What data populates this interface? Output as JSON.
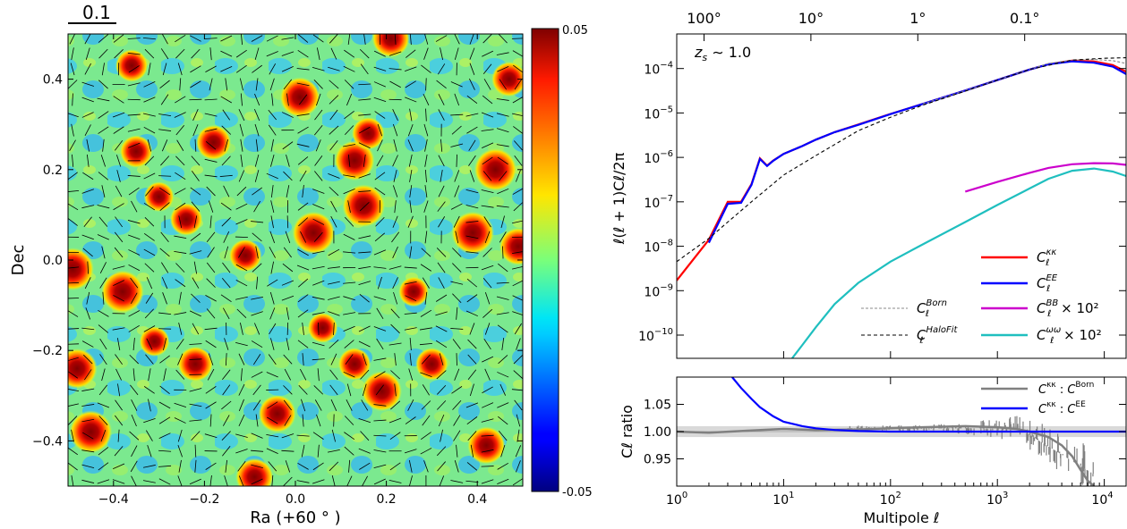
{
  "chart_data": [
    {
      "type": "heatmap",
      "description_scale_label": "0.1",
      "xlabel": "Ra (+60$^\\circ$)",
      "xlabel_display": "Ra (+60 ° )",
      "ylabel": "Dec",
      "xlim": [
        -0.5,
        0.5
      ],
      "ylim": [
        -0.5,
        0.5
      ],
      "xticks": [
        -0.4,
        -0.2,
        0.0,
        0.2,
        0.4
      ],
      "xtick_labels": [
        "−0.4",
        "−0.2",
        "0.0",
        "0.2",
        "0.4"
      ],
      "yticks": [
        -0.4,
        -0.2,
        0.0,
        0.2,
        0.4
      ],
      "ytick_labels": [
        "−0.4",
        "−0.2",
        "0.0",
        "0.2",
        "0.4"
      ],
      "colorbar": {
        "min": -0.05,
        "max": 0.05,
        "min_label": "-0.05",
        "max_label": "0.05",
        "colormap": "jet"
      },
      "peaks": [
        {
          "x": 0.04,
          "y": 0.06,
          "value": 0.05
        },
        {
          "x": 0.15,
          "y": 0.12,
          "value": 0.05
        },
        {
          "x": -0.49,
          "y": -0.02,
          "value": 0.05
        },
        {
          "x": -0.38,
          "y": -0.07,
          "value": 0.05
        },
        {
          "x": -0.45,
          "y": -0.38,
          "value": 0.05
        },
        {
          "x": 0.44,
          "y": 0.2,
          "value": 0.05
        },
        {
          "x": 0.39,
          "y": 0.06,
          "value": 0.05
        },
        {
          "x": 0.13,
          "y": 0.22,
          "value": 0.045
        },
        {
          "x": 0.01,
          "y": 0.36,
          "value": 0.045
        },
        {
          "x": -0.48,
          "y": -0.24,
          "value": 0.045
        },
        {
          "x": 0.19,
          "y": -0.29,
          "value": 0.045
        },
        {
          "x": -0.04,
          "y": -0.34,
          "value": 0.04
        },
        {
          "x": -0.09,
          "y": -0.48,
          "value": 0.04
        },
        {
          "x": 0.49,
          "y": 0.03,
          "value": 0.04
        },
        {
          "x": 0.42,
          "y": -0.41,
          "value": 0.04
        },
        {
          "x": 0.21,
          "y": 0.49,
          "value": 0.04
        },
        {
          "x": -0.18,
          "y": 0.26,
          "value": 0.035
        },
        {
          "x": -0.22,
          "y": -0.23,
          "value": 0.035
        },
        {
          "x": 0.47,
          "y": 0.4,
          "value": 0.035
        },
        {
          "x": -0.11,
          "y": 0.01,
          "value": 0.03
        },
        {
          "x": 0.16,
          "y": 0.28,
          "value": 0.03
        },
        {
          "x": 0.3,
          "y": -0.23,
          "value": 0.03
        },
        {
          "x": 0.13,
          "y": -0.23,
          "value": 0.03
        },
        {
          "x": -0.35,
          "y": 0.24,
          "value": 0.03
        },
        {
          "x": -0.24,
          "y": 0.09,
          "value": 0.03
        },
        {
          "x": -0.36,
          "y": 0.43,
          "value": 0.03
        },
        {
          "x": -0.3,
          "y": 0.14,
          "value": 0.025
        },
        {
          "x": 0.06,
          "y": -0.15,
          "value": 0.025
        },
        {
          "x": 0.26,
          "y": -0.07,
          "value": 0.025
        },
        {
          "x": -0.31,
          "y": -0.18,
          "value": 0.025
        }
      ]
    },
    {
      "type": "line",
      "title_top_axis": "",
      "top_tick_labels": [
        "100°",
        "10°",
        "1°",
        "0.1°"
      ],
      "top_tick_at_ell": [
        1.8,
        18,
        180,
        1800
      ],
      "annotation": "z_s ~ 1.0",
      "annotation_parts": {
        "z": "z",
        "sub": "s",
        "rest": " ∼ 1.0"
      },
      "ylabel": "ℓ(ℓ + 1)Cℓ/2π",
      "xscale": "log",
      "yscale": "log",
      "xlim": [
        1,
        16000
      ],
      "ylim": [
        3e-11,
        0.0006
      ],
      "yticks": [
        1e-10,
        1e-09,
        1e-08,
        1e-07,
        1e-06,
        1e-05,
        0.0001
      ],
      "ytick_labels": [
        {
          "base": "10",
          "exp": "−10"
        },
        {
          "base": "10",
          "exp": "−9"
        },
        {
          "base": "10",
          "exp": "−8"
        },
        {
          "base": "10",
          "exp": "−7"
        },
        {
          "base": "10",
          "exp": "−6"
        },
        {
          "base": "10",
          "exp": "−5"
        },
        {
          "base": "10",
          "exp": "−4"
        }
      ],
      "series": [
        {
          "name": "Cℓ^κκ",
          "label": {
            "main": "C",
            "sub": "ℓ",
            "sup": "κκ",
            "extra": ""
          },
          "color": "#ff0000",
          "x": [
            1,
            2,
            3,
            4,
            5,
            6,
            7,
            8,
            10,
            15,
            20,
            30,
            50,
            100,
            200,
            500,
            1000,
            2000,
            3000,
            5000,
            8000,
            12000,
            16000
          ],
          "y": [
            1.7e-09,
            1.4e-08,
            1e-07,
            1e-07,
            2.5e-07,
            9.5e-07,
            6.5e-07,
            8.5e-07,
            1.2e-06,
            1.8e-06,
            2.5e-06,
            3.7e-06,
            5.5e-06,
            9.5e-06,
            1.6e-05,
            3.2e-05,
            5.5e-05,
            9.5e-05,
            0.000125,
            0.00015,
            0.000145,
            0.00012,
            8.5e-05
          ]
        },
        {
          "name": "Cℓ^EE",
          "label": {
            "main": "C",
            "sub": "ℓ",
            "sup": "EE",
            "extra": ""
          },
          "color": "#0000ff",
          "x": [
            2,
            3,
            4,
            5,
            6,
            7,
            8,
            10,
            15,
            20,
            30,
            50,
            100,
            200,
            500,
            1000,
            2000,
            3000,
            5000,
            8000,
            12000,
            16000
          ],
          "y": [
            1.2e-08,
            9e-08,
            9.5e-08,
            2.4e-07,
            9.2e-07,
            6.4e-07,
            8.4e-07,
            1.2e-06,
            1.8e-06,
            2.5e-06,
            3.7e-06,
            5.4e-06,
            9.4e-06,
            1.6e-05,
            3.2e-05,
            5.5e-05,
            9.5e-05,
            0.000125,
            0.000145,
            0.000135,
            0.00011,
            7.5e-05
          ]
        },
        {
          "name": "Cℓ^BB × 10^2",
          "label": {
            "main": "C",
            "sub": "ℓ",
            "sup": "BB",
            "extra": " × 10²"
          },
          "color": "#cc00cc",
          "x": [
            500,
            1000,
            2000,
            3000,
            5000,
            8000,
            12000,
            16000
          ],
          "y": [
            1.7e-07,
            2.8e-07,
            4.5e-07,
            5.8e-07,
            7e-07,
            7.4e-07,
            7.3e-07,
            6.8e-07
          ]
        },
        {
          "name": "Cℓ^ωω × 10^2",
          "label": {
            "main": "C",
            "sub": "ℓ",
            "sup": "ωω",
            "extra": " × 10²"
          },
          "color": "#1fbfbf",
          "x": [
            12,
            15,
            20,
            30,
            50,
            100,
            200,
            500,
            1000,
            2000,
            3000,
            5000,
            8000,
            12000,
            16000
          ],
          "y": [
            3e-11,
            6e-11,
            1.5e-10,
            5e-10,
            1.5e-09,
            4.5e-09,
            1.1e-08,
            3.5e-08,
            8.5e-08,
            2e-07,
            3.3e-07,
            5e-07,
            5.6e-07,
            4.8e-07,
            3.8e-07
          ]
        },
        {
          "name": "Cℓ^Born",
          "label": {
            "main": "C",
            "sub": "ℓ",
            "sup": "Born",
            "extra": ""
          },
          "color": "#888888",
          "dash": "3,2",
          "x": [
            200,
            500,
            1000,
            2000,
            3000,
            5000,
            8000,
            12000,
            16000
          ],
          "y": [
            1.6e-05,
            3.2e-05,
            5.5e-05,
            9.5e-05,
            0.00013,
            0.000155,
            0.00016,
            0.00015,
            0.00013
          ]
        },
        {
          "name": "Cℓ^HaloFit",
          "label": {
            "main": "C",
            "sub": "ℓ",
            "sup": "HaloFit",
            "extra": ""
          },
          "color": "#000000",
          "dash": "4,3",
          "x": [
            1,
            2,
            3,
            5,
            10,
            20,
            50,
            100,
            200,
            500,
            1000,
            2000,
            5000,
            10000,
            16000
          ],
          "y": [
            4.5e-09,
            1.5e-08,
            3.5e-08,
            1e-07,
            4e-07,
            1.1e-06,
            4e-06,
            8e-06,
            1.5e-05,
            3.1e-05,
            5.5e-05,
            9.5e-05,
            0.000155,
            0.00017,
            0.000175
          ]
        }
      ]
    },
    {
      "type": "line",
      "xlabel": "Multipole ℓ",
      "ylabel": "Cℓ ratio",
      "xscale": "log",
      "xlim": [
        1,
        16000
      ],
      "ylim": [
        0.9,
        1.1
      ],
      "yticks": [
        0.95,
        1.0,
        1.05
      ],
      "ytick_labels": [
        "0.95",
        "1.00",
        "1.05"
      ],
      "xticks": [
        1,
        10,
        100,
        1000,
        10000
      ],
      "xtick_labels": [
        {
          "base": "10",
          "exp": "0"
        },
        {
          "base": "10",
          "exp": "1"
        },
        {
          "base": "10",
          "exp": "2"
        },
        {
          "base": "10",
          "exp": "3"
        },
        {
          "base": "10",
          "exp": "4"
        }
      ],
      "band": [
        0.99,
        1.01
      ],
      "series": [
        {
          "name": "Cℓ^κκ : Cℓ^Born",
          "label": {
            "a_sup": "κκ",
            "b_sup": "Born"
          },
          "color": "#808080",
          "x": [
            1,
            2,
            5,
            10,
            20,
            50,
            100,
            200,
            500,
            1000,
            1500,
            2000,
            3000,
            4000,
            5000,
            6000,
            7000,
            8000
          ],
          "y": [
            1.0,
            0.998,
            1.002,
            1.005,
            1.003,
            1.004,
            1.006,
            1.008,
            1.01,
            1.008,
            1.005,
            1.0,
            0.99,
            0.975,
            0.955,
            0.93,
            0.91,
            0.9
          ]
        },
        {
          "name": "Cℓ^κκ : Cℓ^EE",
          "label": {
            "a_sup": "κκ",
            "b_sup": "EE"
          },
          "color": "#0000ff",
          "x": [
            3.3,
            4,
            5,
            6,
            8,
            10,
            15,
            20,
            30,
            50,
            100,
            200,
            500,
            1000,
            5000,
            16000
          ],
          "y": [
            1.1,
            1.08,
            1.06,
            1.045,
            1.028,
            1.018,
            1.01,
            1.006,
            1.003,
            1.001,
            1.0,
            1.0,
            1.0,
            1.0,
            1.0,
            1.0
          ]
        }
      ]
    }
  ]
}
